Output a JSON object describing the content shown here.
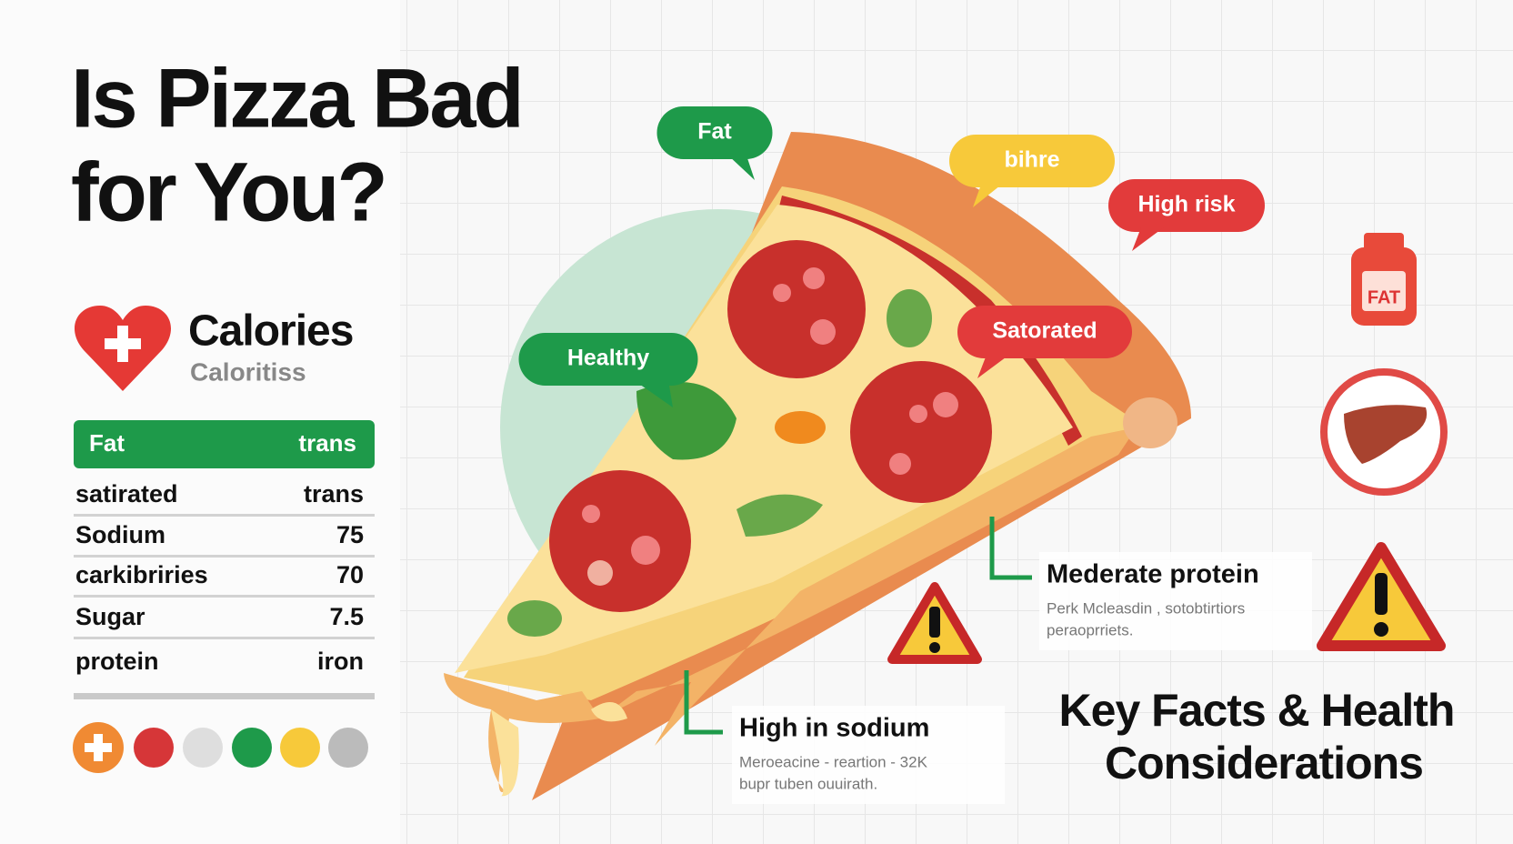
{
  "header": {
    "title_lines": [
      "Is Pizza Bad",
      "for You?"
    ]
  },
  "calories": {
    "heading": "Calories",
    "subheading": "Caloritiss"
  },
  "table": {
    "header": [
      "Fat",
      "trans"
    ],
    "rows": [
      [
        "satirated",
        "trans"
      ],
      [
        "Sodium",
        "75"
      ],
      [
        "carkibriries",
        "70"
      ],
      [
        "Sugar",
        "7.5"
      ],
      [
        "protein",
        "iron"
      ]
    ]
  },
  "bubbles": [
    {
      "label": "Fat"
    },
    {
      "label": "bihre"
    },
    {
      "label": "High risk"
    },
    {
      "label": "Satorated"
    },
    {
      "label": "Healthy"
    }
  ],
  "callouts": [
    {
      "title": "Mederate protein",
      "lines": [
        "Perk Mcleasdin , sotobtirtiors",
        "peraoprriets."
      ]
    },
    {
      "title": "High in sodium",
      "lines": [
        "Meroeacine - reartion - 32K",
        "bupr tuben ouuirath."
      ]
    }
  ],
  "icons": {
    "jar_label": "FAT"
  },
  "footer": {
    "lines": [
      "Key Facts & Health",
      "Considerations"
    ]
  }
}
